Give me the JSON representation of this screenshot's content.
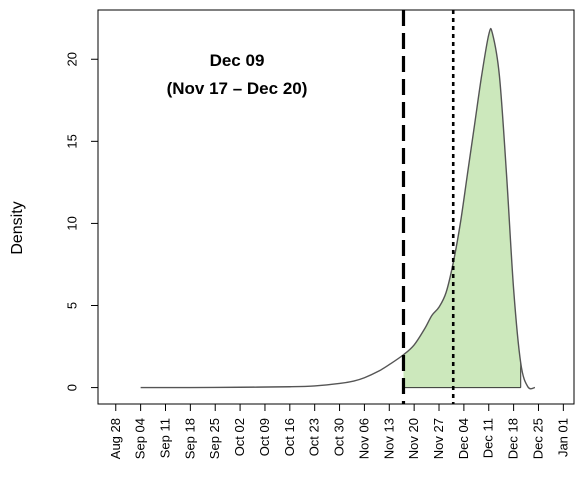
{
  "chart_data": {
    "type": "area",
    "title": "",
    "xlabel": "",
    "ylabel": "Density",
    "x_ticks": [
      "Aug 28",
      "Sep 04",
      "Sep 11",
      "Sep 18",
      "Sep 25",
      "Oct 02",
      "Oct 09",
      "Oct 16",
      "Oct 23",
      "Oct 30",
      "Nov 06",
      "Nov 13",
      "Nov 20",
      "Nov 27",
      "Dec 04",
      "Dec 11",
      "Dec 18",
      "Dec 25",
      "Jan 01"
    ],
    "y_ticks": [
      0,
      5,
      10,
      15,
      20
    ],
    "xlim": [
      "Aug 23",
      "Jan 04"
    ],
    "ylim": [
      -1,
      23
    ],
    "grid": false,
    "annotation": {
      "line1": "Dec 09",
      "line2": "(Nov 17 – Dec 20)"
    },
    "vlines": [
      {
        "x": "Nov 17",
        "style": "dashed"
      },
      {
        "x": "Dec 01",
        "style": "dotted"
      }
    ],
    "shaded_interval": [
      "Nov 17",
      "Dec 20"
    ],
    "fill_color": "#cce8bc",
    "line_color": "#555555",
    "density": [
      {
        "x": "Sep 04",
        "y": 0.0
      },
      {
        "x": "Sep 18",
        "y": 0.0
      },
      {
        "x": "Oct 02",
        "y": 0.02
      },
      {
        "x": "Oct 16",
        "y": 0.05
      },
      {
        "x": "Oct 23",
        "y": 0.1
      },
      {
        "x": "Oct 30",
        "y": 0.25
      },
      {
        "x": "Nov 03",
        "y": 0.4
      },
      {
        "x": "Nov 06",
        "y": 0.6
      },
      {
        "x": "Nov 10",
        "y": 1.0
      },
      {
        "x": "Nov 13",
        "y": 1.4
      },
      {
        "x": "Nov 17",
        "y": 2.0
      },
      {
        "x": "Nov 20",
        "y": 2.6
      },
      {
        "x": "Nov 23",
        "y": 3.6
      },
      {
        "x": "Nov 25",
        "y": 4.4
      },
      {
        "x": "Nov 27",
        "y": 4.9
      },
      {
        "x": "Nov 29",
        "y": 5.8
      },
      {
        "x": "Dec 01",
        "y": 7.6
      },
      {
        "x": "Dec 03",
        "y": 10.0
      },
      {
        "x": "Dec 05",
        "y": 13.0
      },
      {
        "x": "Dec 07",
        "y": 16.0
      },
      {
        "x": "Dec 09",
        "y": 19.0
      },
      {
        "x": "Dec 11",
        "y": 21.5
      },
      {
        "x": "Dec 12",
        "y": 21.6
      },
      {
        "x": "Dec 14",
        "y": 19.0
      },
      {
        "x": "Dec 16",
        "y": 13.0
      },
      {
        "x": "Dec 18",
        "y": 6.0
      },
      {
        "x": "Dec 20",
        "y": 1.5
      },
      {
        "x": "Dec 22",
        "y": 0.05
      },
      {
        "x": "Dec 24",
        "y": 0.0
      }
    ]
  }
}
